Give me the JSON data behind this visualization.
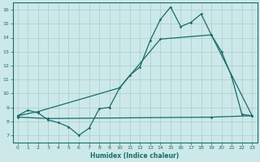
{
  "title": "",
  "xlabel": "Humidex (Indice chaleur)",
  "ylabel": "",
  "background_color": "#cce8e8",
  "grid_color": "#aacccc",
  "line_color": "#1a6b6b",
  "xlim": [
    -0.5,
    23.5
  ],
  "ylim": [
    6.5,
    16.5
  ],
  "xticks": [
    0,
    1,
    2,
    3,
    4,
    5,
    6,
    7,
    8,
    9,
    10,
    11,
    12,
    13,
    14,
    15,
    16,
    17,
    18,
    19,
    20,
    21,
    22,
    23
  ],
  "yticks": [
    7,
    8,
    9,
    10,
    11,
    12,
    13,
    14,
    15,
    16
  ],
  "line1_x": [
    0,
    1,
    2,
    3,
    4,
    5,
    6,
    7,
    8,
    9,
    10,
    11,
    12,
    13,
    14,
    15,
    16,
    17,
    18,
    19,
    20,
    21,
    22,
    23
  ],
  "line1_y": [
    8.4,
    8.8,
    8.6,
    8.1,
    7.9,
    7.6,
    7.0,
    7.5,
    8.9,
    9.0,
    10.4,
    11.3,
    11.9,
    13.8,
    15.3,
    16.2,
    14.8,
    15.1,
    15.7,
    14.2,
    13.0,
    11.2,
    8.5,
    8.4
  ],
  "line2_x": [
    0,
    2,
    10,
    14,
    19,
    23
  ],
  "line2_y": [
    8.4,
    8.7,
    10.4,
    13.9,
    14.2,
    8.4
  ],
  "line3_x": [
    0,
    3,
    19,
    23
  ],
  "line3_y": [
    8.3,
    8.2,
    8.3,
    8.4
  ]
}
